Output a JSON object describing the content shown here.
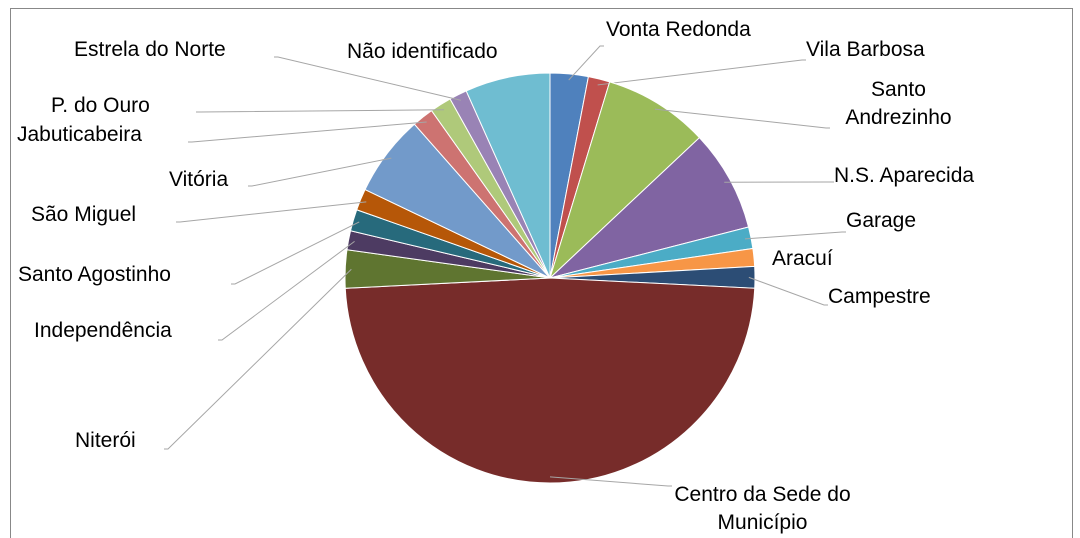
{
  "chart_data": {
    "type": "pie",
    "categories": [
      "Vonta Redonda",
      "Vila Barbosa",
      "Santo Andrezinho",
      "N.S. Aparecida",
      "Garage",
      "Aracuí",
      "Campestre",
      "Centro da Sede do Município",
      "Niterói",
      "Independência",
      "Santo Agostinho",
      "São Miguel",
      "Vitória",
      "Jabuticabeira",
      "P. do Ouro",
      "Estrela do Norte",
      "Não identificado"
    ],
    "values": [
      3,
      1.7,
      8.3,
      8,
      1.7,
      1.4,
      1.7,
      48.4,
      3,
      1.5,
      1.7,
      1.7,
      6.4,
      1.7,
      1.7,
      1.4,
      6.7
    ],
    "colors": [
      "#4f81bd",
      "#c0504d",
      "#9bbb59",
      "#8064a2",
      "#4bacc6",
      "#f79646",
      "#2c4d75",
      "#772c2a",
      "#5f7530",
      "#4d3b62",
      "#276a7c",
      "#b65708",
      "#729aca",
      "#cd7371",
      "#afc97a",
      "#9983b5",
      "#6fbdd1"
    ]
  }
}
